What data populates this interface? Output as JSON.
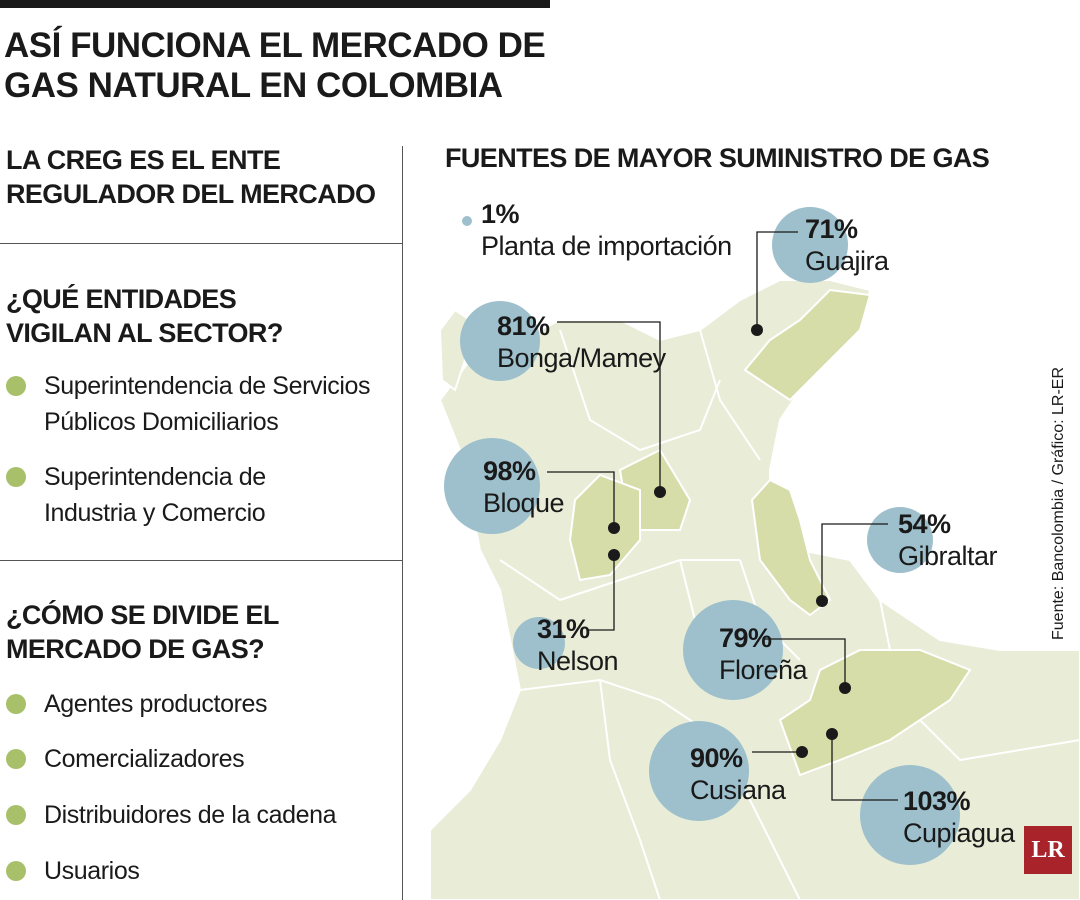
{
  "title": {
    "line1": "ASÍ FUNCIONA EL MERCADO DE",
    "line2": "GAS NATURAL EN COLOMBIA"
  },
  "sections": {
    "regulator": {
      "line1": "LA CREG ES EL ENTE",
      "line2": "REGULADOR DEL MERCADO"
    },
    "watchers": {
      "line1": "¿QUÉ ENTIDADES",
      "line2": "VIGILAN AL SECTOR?",
      "items": [
        {
          "line1": "Superintendencia de Servicios",
          "line2": "Públicos Domiciliarios"
        },
        {
          "line1": "Superintendencia de",
          "line2": "Industria y Comercio"
        }
      ]
    },
    "market": {
      "line1": "¿CÓMO SE DIVIDE EL",
      "line2": "MERCADO DE GAS?",
      "items": [
        "Agentes productores",
        "Comercializadores",
        "Distribuidores de la cadena",
        "Usuarios"
      ]
    }
  },
  "map": {
    "heading": "FUENTES DE MAYOR SUMINISTRO DE GAS",
    "bubble_color": "#9dc0cc",
    "region_color": "#d6dda8",
    "land_color": "#e9ecd7",
    "sources": [
      {
        "pct": "1%",
        "name": "Planta de importación",
        "value": 1
      },
      {
        "pct": "71%",
        "name": "Guajira",
        "value": 71
      },
      {
        "pct": "81%",
        "name": "Bonga/Mamey",
        "value": 81
      },
      {
        "pct": "98%",
        "name": "Bloque",
        "value": 98
      },
      {
        "pct": "54%",
        "name": "Gibraltar",
        "value": 54
      },
      {
        "pct": "31%",
        "name": "Nelson",
        "value": 31
      },
      {
        "pct": "79%",
        "name": "Floreña",
        "value": 79
      },
      {
        "pct": "90%",
        "name": "Cusiana",
        "value": 90
      },
      {
        "pct": "103%",
        "name": "Cupiagua",
        "value": 103
      }
    ]
  },
  "source_note": "Fuente: Bancolombia / Gráfico: LR-ER",
  "logo": "LR"
}
